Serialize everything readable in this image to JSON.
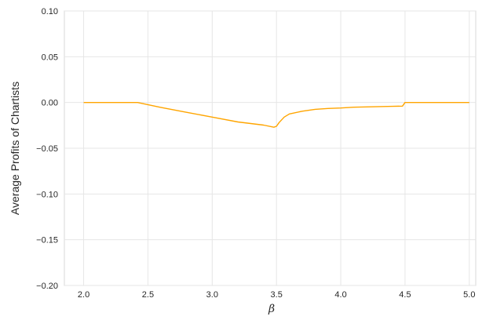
{
  "chart_data": {
    "type": "line",
    "title": "",
    "xlabel": "β",
    "ylabel": "Average Profits of Chartists",
    "xlim": [
      1.85,
      5.05
    ],
    "ylim": [
      -0.2,
      0.1
    ],
    "grid": true,
    "xticks": [
      2.0,
      2.5,
      3.0,
      3.5,
      4.0,
      4.5,
      5.0
    ],
    "xtick_labels": [
      "2.0",
      "2.5",
      "3.0",
      "3.5",
      "4.0",
      "4.5",
      "5.0"
    ],
    "yticks": [
      0.1,
      0.05,
      0.0,
      -0.05,
      -0.1,
      -0.15,
      -0.2
    ],
    "ytick_labels": [
      "0.10",
      "0.05",
      "0.00",
      "−0.05",
      "−0.10",
      "−0.15",
      "−0.20"
    ],
    "series": [
      {
        "color": "#ffa500",
        "x": [
          2.0,
          2.2,
          2.4,
          2.42,
          2.6,
          2.8,
          3.0,
          3.2,
          3.4,
          3.48,
          3.5,
          3.52,
          3.56,
          3.6,
          3.7,
          3.8,
          3.9,
          4.0,
          4.1,
          4.2,
          4.3,
          4.4,
          4.48,
          4.5,
          4.52,
          4.7,
          5.0
        ],
        "y": [
          0.0,
          0.0,
          0.0,
          0.0,
          -0.0053,
          -0.0107,
          -0.016,
          -0.0213,
          -0.0247,
          -0.027,
          -0.026,
          -0.022,
          -0.016,
          -0.0125,
          -0.0095,
          -0.0075,
          -0.0065,
          -0.006,
          -0.0052,
          -0.0048,
          -0.0045,
          -0.0042,
          -0.004,
          0.0,
          0.0,
          0.0,
          0.0
        ]
      }
    ]
  }
}
